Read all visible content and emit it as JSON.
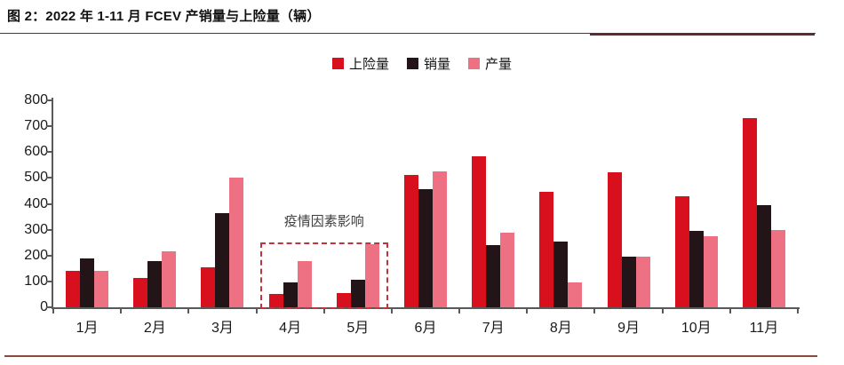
{
  "figure": {
    "title": "图 2：2022 年 1-11 月 FCEV 产销量与上险量（辆）"
  },
  "colors": {
    "axis": "#595959",
    "tick_label": "#1a1a1a",
    "title_underline": "#3f3f3f",
    "title_underline_accent": "#5e2a33",
    "bottom_rule": "#8a4a3c",
    "annotation_text": "#3f3f3f",
    "annotation_box": "#c0343c"
  },
  "chart_data": {
    "type": "bar",
    "title": "2022 年 1-11 月 FCEV 产销量与上险量（辆）",
    "categories": [
      "1月",
      "2月",
      "3月",
      "4月",
      "5月",
      "6月",
      "7月",
      "8月",
      "9月",
      "10月",
      "11月"
    ],
    "series": [
      {
        "name": "上险量",
        "color": "#d8101e",
        "values": [
          140,
          115,
          155,
          50,
          55,
          510,
          583,
          445,
          522,
          430,
          730
        ]
      },
      {
        "name": "销量",
        "color": "#231418",
        "values": [
          190,
          178,
          365,
          95,
          105,
          455,
          240,
          253,
          197,
          295,
          396
        ]
      },
      {
        "name": "产量",
        "color": "#ee7183",
        "values": [
          140,
          215,
          500,
          178,
          245,
          525,
          290,
          96,
          197,
          275,
          298
        ]
      }
    ],
    "xlabel": "",
    "ylabel": "",
    "ylim": [
      0,
      800
    ],
    "yticks": [
      0,
      100,
      200,
      300,
      400,
      500,
      600,
      700,
      800
    ],
    "grid": false,
    "legend_position": "top-center",
    "annotation": {
      "text": "疫情因素影响",
      "covers_categories": [
        "4月",
        "5月"
      ],
      "box_top_value": 250
    }
  }
}
